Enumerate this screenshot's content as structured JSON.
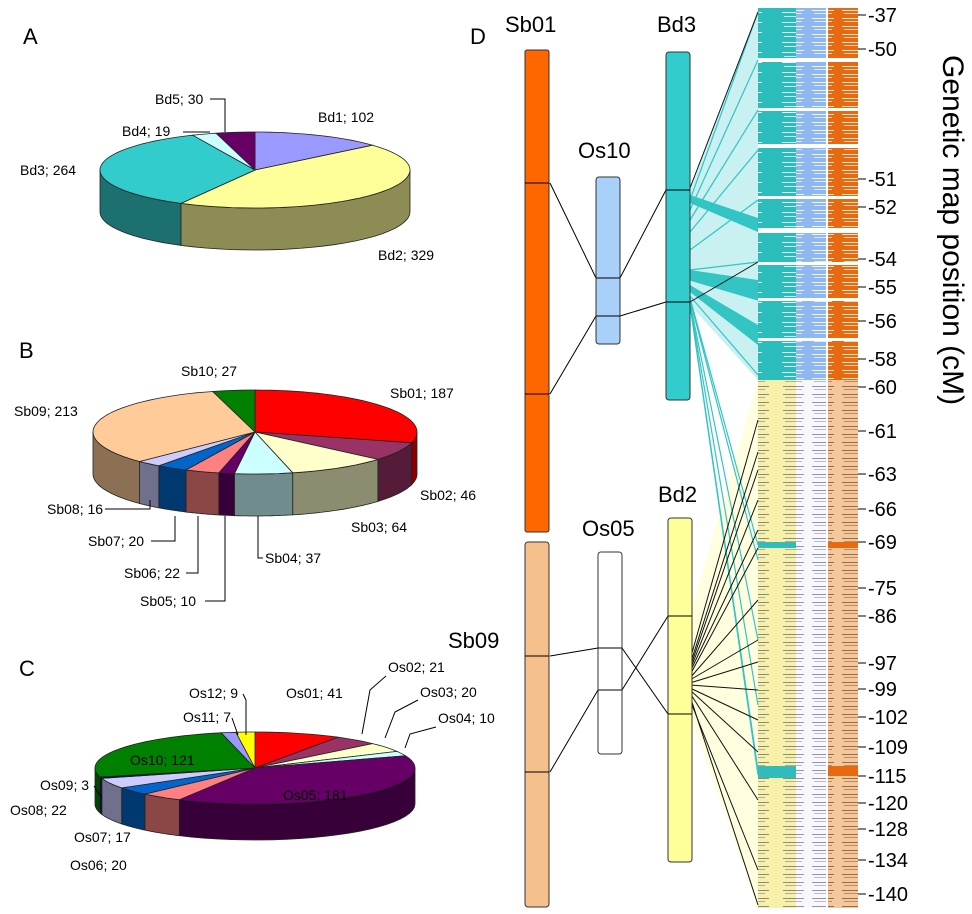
{
  "panels": {
    "a": "A",
    "b": "B",
    "c": "C",
    "d": "D"
  },
  "colors": {
    "sb01": "#ff6600",
    "os10": "#a8d0f8",
    "bd3": "#33cccc",
    "sb09": "#f5c08c",
    "os05": "#ffffff",
    "bd2": "#ffff99",
    "ribbon_bd3": "#7ad8d8",
    "ribbon_bd2": "#ffffcc"
  },
  "chart_data": [
    {
      "type": "pie",
      "panel": "A",
      "slices": [
        {
          "label": "Bd1",
          "value": 102,
          "text": "Bd1; 102",
          "color": "#9999ff"
        },
        {
          "label": "Bd2",
          "value": 329,
          "text": "Bd2; 329",
          "color": "#ffff99"
        },
        {
          "label": "Bd3",
          "value": 264,
          "text": "Bd3; 264",
          "color": "#33cccc"
        },
        {
          "label": "Bd4",
          "value": 19,
          "text": "Bd4; 19",
          "color": "#ccffff"
        },
        {
          "label": "Bd5",
          "value": 30,
          "text": "Bd5; 30",
          "color": "#660066"
        }
      ]
    },
    {
      "type": "pie",
      "panel": "B",
      "slices": [
        {
          "label": "Sb01",
          "value": 187,
          "text": "Sb01; 187",
          "color": "#ff0000"
        },
        {
          "label": "Sb02",
          "value": 46,
          "text": "Sb02; 46",
          "color": "#993366"
        },
        {
          "label": "Sb03",
          "value": 64,
          "text": "Sb03; 64",
          "color": "#ffffcc"
        },
        {
          "label": "Sb04",
          "value": 37,
          "text": "Sb04; 37",
          "color": "#ccffff"
        },
        {
          "label": "Sb05",
          "value": 10,
          "text": "Sb05; 10",
          "color": "#660066"
        },
        {
          "label": "Sb06",
          "value": 22,
          "text": "Sb06; 22",
          "color": "#ff8080"
        },
        {
          "label": "Sb07",
          "value": 20,
          "text": "Sb07; 20",
          "color": "#0066cc"
        },
        {
          "label": "Sb08",
          "value": 16,
          "text": "Sb08; 16",
          "color": "#ccccff"
        },
        {
          "label": "Sb09",
          "value": 213,
          "text": "Sb09; 213",
          "color": "#ffcc99"
        },
        {
          "label": "Sb10",
          "value": 27,
          "text": "Sb10; 27",
          "color": "#008000"
        }
      ]
    },
    {
      "type": "pie",
      "panel": "C",
      "slices": [
        {
          "label": "Os01",
          "value": 41,
          "text": "Os01; 41",
          "color": "#ff0000"
        },
        {
          "label": "Os02",
          "value": 21,
          "text": "Os02; 21",
          "color": "#993366"
        },
        {
          "label": "Os03",
          "value": 20,
          "text": "Os03; 20",
          "color": "#ffffcc"
        },
        {
          "label": "Os04",
          "value": 10,
          "text": "Os04; 10",
          "color": "#ccffff"
        },
        {
          "label": "Os05",
          "value": 181,
          "text": "Os05; 181",
          "color": "#660066"
        },
        {
          "label": "Os06",
          "value": 20,
          "text": "Os06; 20",
          "color": "#ff8080"
        },
        {
          "label": "Os07",
          "value": 17,
          "text": "Os07; 17",
          "color": "#0066cc"
        },
        {
          "label": "Os08",
          "value": 22,
          "text": "Os08; 22",
          "color": "#ccccff"
        },
        {
          "label": "Os09",
          "value": 3,
          "text": "Os09; 3",
          "color": "#000080"
        },
        {
          "label": "Os10",
          "value": 121,
          "text": "Os10; 121",
          "color": "#008000"
        },
        {
          "label": "Os11",
          "value": 7,
          "text": "Os11; 7",
          "color": "#9999ff"
        },
        {
          "label": "Os12",
          "value": 9,
          "text": "Os12; 9",
          "color": "#ffff00"
        }
      ]
    }
  ],
  "synteny": {
    "chromosomes": [
      {
        "id": "Sb01",
        "label": "Sb01"
      },
      {
        "id": "Os10",
        "label": "Os10"
      },
      {
        "id": "Bd3",
        "label": "Bd3"
      },
      {
        "id": "Sb09",
        "label": "Sb09"
      },
      {
        "id": "Os05",
        "label": "Os05"
      },
      {
        "id": "Bd2",
        "label": "Bd2"
      }
    ],
    "axis_title": "Genetic map position (cM)",
    "ticks": [
      "-37",
      "-50",
      "-51",
      "-52",
      "-54",
      "-55",
      "-56",
      "-58",
      "-60",
      "-61",
      "-63",
      "-66",
      "-69",
      "-75",
      "-86",
      "-97",
      "-99",
      "-102",
      "-109",
      "-115",
      "-120",
      "-128",
      "-134",
      "-140"
    ]
  }
}
